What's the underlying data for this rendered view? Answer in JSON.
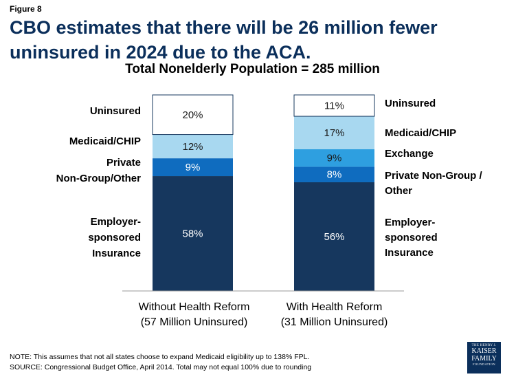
{
  "figure_label": "Figure 8",
  "title": "CBO estimates that there will be 26 million fewer uninsured in 2024 due to the ACA.",
  "note": "NOTE: This assumes that not all states choose to expand Medicaid eligibility up to 138% FPL.",
  "source": "SOURCE:  Congressional Budget Office, April 2014. Total may not equal 100% due to rounding",
  "logo": {
    "line1": "THE HENRY J.",
    "line2": "KAISER",
    "line3": "FAMILY",
    "line4": "FOUNDATION"
  },
  "colors": {
    "employer": "#16375e",
    "private": "#0f6cbf",
    "exchange": "#2e9fe0",
    "medicaid": "#a8d8f0",
    "uninsured": "#ffffff",
    "title": "#0b2f5b"
  },
  "chart_data": {
    "type": "bar",
    "stacked": true,
    "title": "Total Nonelderly Population = 285 million",
    "categories": [
      [
        "Without Health Reform",
        "(57 Million Uninsured)"
      ],
      [
        "With Health Reform",
        "(31 Million Uninsured)"
      ]
    ],
    "series": [
      {
        "name": "Employer-sponsored Insurance",
        "values": [
          58,
          56
        ],
        "labels": [
          "58%",
          "56%"
        ]
      },
      {
        "name": "Private Non-Group/Other",
        "values": [
          9,
          8
        ],
        "labels": [
          "9%",
          "8%"
        ]
      },
      {
        "name": "Exchange",
        "values": [
          0,
          9
        ],
        "labels": [
          "",
          "9%"
        ]
      },
      {
        "name": "Medicaid/CHIP",
        "values": [
          12,
          17
        ],
        "labels": [
          "12%",
          "17%"
        ]
      },
      {
        "name": "Uninsured",
        "values": [
          20,
          11
        ],
        "labels": [
          "20%",
          "11%"
        ]
      }
    ],
    "left_legend": [
      [
        "Uninsured"
      ],
      [
        "Medicaid/CHIP"
      ],
      [
        "Private",
        "Non-Group/Other"
      ],
      [
        "Employer-",
        "sponsored",
        "Insurance"
      ]
    ],
    "right_legend": [
      [
        "Uninsured"
      ],
      [
        "Medicaid/CHIP"
      ],
      [
        "Exchange"
      ],
      [
        "Private Non-Group /",
        "Other"
      ],
      [
        "Employer-",
        "sponsored",
        "Insurance"
      ]
    ],
    "ylim": [
      0,
      100
    ]
  }
}
